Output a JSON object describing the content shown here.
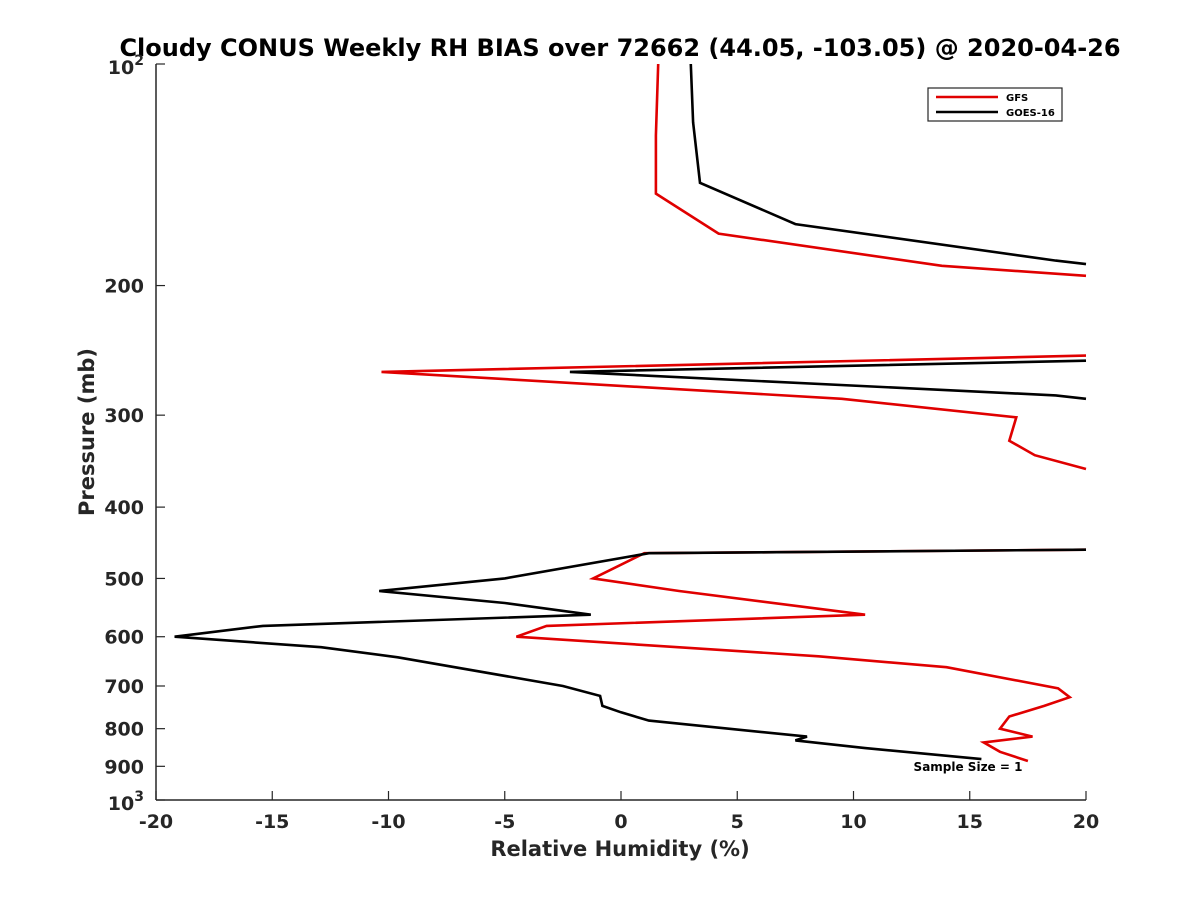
{
  "chart_data": {
    "type": "line",
    "title": "Cloudy CONUS Weekly RH BIAS over 72662 (44.05, -103.05) @ 2020-04-26",
    "xlabel": "Relative Humidity (%)",
    "ylabel": "Pressure (mb)",
    "xlim": [
      -20,
      20
    ],
    "ylim": [
      100,
      1000
    ],
    "y_scale": "log",
    "y_reversed": true,
    "x_ticks": [
      -20,
      -15,
      -10,
      -5,
      0,
      5,
      10,
      15,
      20
    ],
    "x_tick_labels": [
      "-20",
      "-15",
      "-10",
      "-5",
      "0",
      "5",
      "10",
      "15",
      "20"
    ],
    "y_ticks": [
      200,
      300,
      400,
      500,
      600,
      700,
      800,
      900
    ],
    "y_tick_labels": [
      "200",
      "300",
      "400",
      "500",
      "600",
      "700",
      "800",
      "900"
    ],
    "y_exp_ticks": [
      {
        "value": 100,
        "base": "10",
        "exp": "2"
      },
      {
        "value": 1000,
        "base": "10",
        "exp": "3"
      }
    ],
    "grid": false,
    "legend_position": "top-right",
    "annotation": "Sample Size = 1",
    "series": [
      {
        "name": "GFS",
        "color": "#e00000",
        "segments": [
          [
            [
              1.6,
              100
            ],
            [
              1.5,
              125
            ],
            [
              1.5,
              150
            ],
            [
              4.2,
              170
            ],
            [
              13.8,
              188
            ],
            [
              20,
              194
            ]
          ],
          [
            [
              20,
              249
            ],
            [
              -10.3,
              262
            ],
            [
              9.5,
              285
            ],
            [
              17,
              302
            ],
            [
              16.7,
              325
            ],
            [
              17.8,
              340
            ],
            [
              20,
              355
            ]
          ],
          [
            [
              20,
              457
            ],
            [
              1,
              462
            ],
            [
              -1.2,
              500
            ],
            [
              2.5,
              520
            ],
            [
              10.5,
              560
            ],
            [
              -3.2,
              580
            ],
            [
              -4.5,
              600
            ],
            [
              8.5,
              638
            ],
            [
              14,
              660
            ],
            [
              18.8,
              705
            ],
            [
              19.3,
              725
            ],
            [
              18.2,
              745
            ],
            [
              16.7,
              770
            ],
            [
              16.3,
              800
            ],
            [
              17.7,
              820
            ],
            [
              15.6,
              835
            ],
            [
              16.3,
              860
            ],
            [
              17.5,
              885
            ]
          ]
        ]
      },
      {
        "name": "GOES-16",
        "color": "#000000",
        "segments": [
          [
            [
              3,
              100
            ],
            [
              3.1,
              120
            ],
            [
              3.4,
              145
            ],
            [
              7.5,
              165
            ],
            [
              18.7,
              185
            ],
            [
              20,
              187
            ]
          ],
          [
            [
              20,
              253
            ],
            [
              -2.2,
              262
            ],
            [
              18.7,
              282
            ],
            [
              20,
              285
            ]
          ],
          [
            [
              20,
              457
            ],
            [
              1.2,
              462
            ],
            [
              -5,
              500
            ],
            [
              -10.4,
              520
            ],
            [
              -5,
              540
            ],
            [
              -1.3,
              560
            ],
            [
              -15.4,
              580
            ],
            [
              -19.2,
              600
            ],
            [
              -12.9,
              620
            ],
            [
              -9.6,
              640
            ],
            [
              -2.5,
              700
            ],
            [
              -0.9,
              722
            ],
            [
              -0.8,
              745
            ],
            [
              0,
              760
            ],
            [
              1.2,
              780
            ],
            [
              8,
              820
            ],
            [
              7.5,
              830
            ],
            [
              10.5,
              850
            ],
            [
              15.5,
              880
            ]
          ]
        ]
      }
    ]
  }
}
